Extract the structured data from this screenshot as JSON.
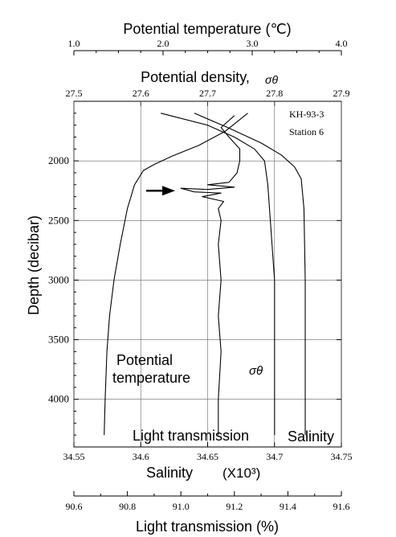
{
  "chart_data": {
    "type": "line",
    "axes": {
      "top1": {
        "label": "Potential temperature (℃)",
        "range": [
          1.0,
          4.0
        ],
        "ticks": [
          "1.0",
          "2.0",
          "3.0",
          "4.0"
        ]
      },
      "top2": {
        "label": "Potential density,",
        "symbol": "σθ",
        "range": [
          27.5,
          27.9
        ],
        "ticks": [
          "27.5",
          "27.6",
          "27.7",
          "27.8",
          "27.9"
        ]
      },
      "bottom1": {
        "label": "Salinity",
        "unit": "(X10³)",
        "range": [
          34.55,
          34.75
        ],
        "ticks": [
          "34.55",
          "34.6",
          "34.65",
          "34.7",
          "34.75"
        ]
      },
      "bottom2": {
        "label": "Light transmission (%)",
        "range": [
          90.6,
          91.6
        ],
        "ticks": [
          "90.6",
          "90.8",
          "91.0",
          "91.2",
          "91.4",
          "91.6"
        ]
      },
      "y": {
        "label": "Depth (decibar)",
        "range": [
          1500,
          4400
        ],
        "ticks": [
          "2000",
          "2500",
          "3000",
          "3500",
          "4000"
        ],
        "inverted": true
      }
    },
    "station": [
      "KH-93-3",
      "Station 6"
    ],
    "series": [
      {
        "name": "Potential temperature",
        "axis": "top1",
        "points": [
          [
            2.95,
            1600
          ],
          [
            2.7,
            1750
          ],
          [
            2.4,
            1870
          ],
          [
            2.1,
            1960
          ],
          [
            1.9,
            2030
          ],
          [
            1.78,
            2080
          ],
          [
            1.68,
            2200
          ],
          [
            1.6,
            2400
          ],
          [
            1.52,
            2700
          ],
          [
            1.45,
            3000
          ],
          [
            1.4,
            3300
          ],
          [
            1.37,
            3600
          ],
          [
            1.35,
            4000
          ],
          [
            1.34,
            4300
          ]
        ]
      },
      {
        "name": "σθ",
        "axis": "top2",
        "points": [
          [
            27.63,
            1600
          ],
          [
            27.7,
            1700
          ],
          [
            27.74,
            1800
          ],
          [
            27.77,
            1900
          ],
          [
            27.785,
            2000
          ],
          [
            27.79,
            2200
          ],
          [
            27.795,
            2600
          ],
          [
            27.8,
            3000
          ],
          [
            27.8,
            3500
          ],
          [
            27.8,
            4000
          ],
          [
            27.8,
            4300
          ]
        ]
      },
      {
        "name": "Salinity",
        "axis": "bottom1",
        "points": [
          [
            34.64,
            1600
          ],
          [
            34.665,
            1720
          ],
          [
            34.69,
            1850
          ],
          [
            34.705,
            1950
          ],
          [
            34.715,
            2050
          ],
          [
            34.72,
            2150
          ],
          [
            34.722,
            2400
          ],
          [
            34.723,
            3000
          ],
          [
            34.723,
            3500
          ],
          [
            34.723,
            4000
          ],
          [
            34.723,
            4300
          ]
        ]
      },
      {
        "name": "Light transmission",
        "axis": "bottom2",
        "points": [
          [
            91.2,
            1620
          ],
          [
            91.15,
            1720
          ],
          [
            91.18,
            1800
          ],
          [
            91.22,
            1900
          ],
          [
            91.22,
            2000
          ],
          [
            91.21,
            2100
          ],
          [
            91.18,
            2180
          ],
          [
            91.1,
            2200
          ],
          [
            91.2,
            2220
          ],
          [
            91.1,
            2240
          ],
          [
            91.0,
            2230
          ],
          [
            91.05,
            2260
          ],
          [
            91.15,
            2270
          ],
          [
            91.08,
            2300
          ],
          [
            91.16,
            2340
          ],
          [
            91.14,
            2400
          ],
          [
            91.15,
            2500
          ],
          [
            91.14,
            2700
          ],
          [
            91.15,
            3000
          ],
          [
            91.14,
            3300
          ],
          [
            91.15,
            3600
          ],
          [
            91.14,
            4000
          ],
          [
            91.14,
            4300
          ]
        ]
      }
    ],
    "annotations": {
      "potential_temperature": [
        "Potential",
        "temperature"
      ],
      "sigma_theta": "σθ",
      "light_transmission": "Light transmission",
      "salinity": "Salinity"
    },
    "arrow_depth": 2250
  }
}
